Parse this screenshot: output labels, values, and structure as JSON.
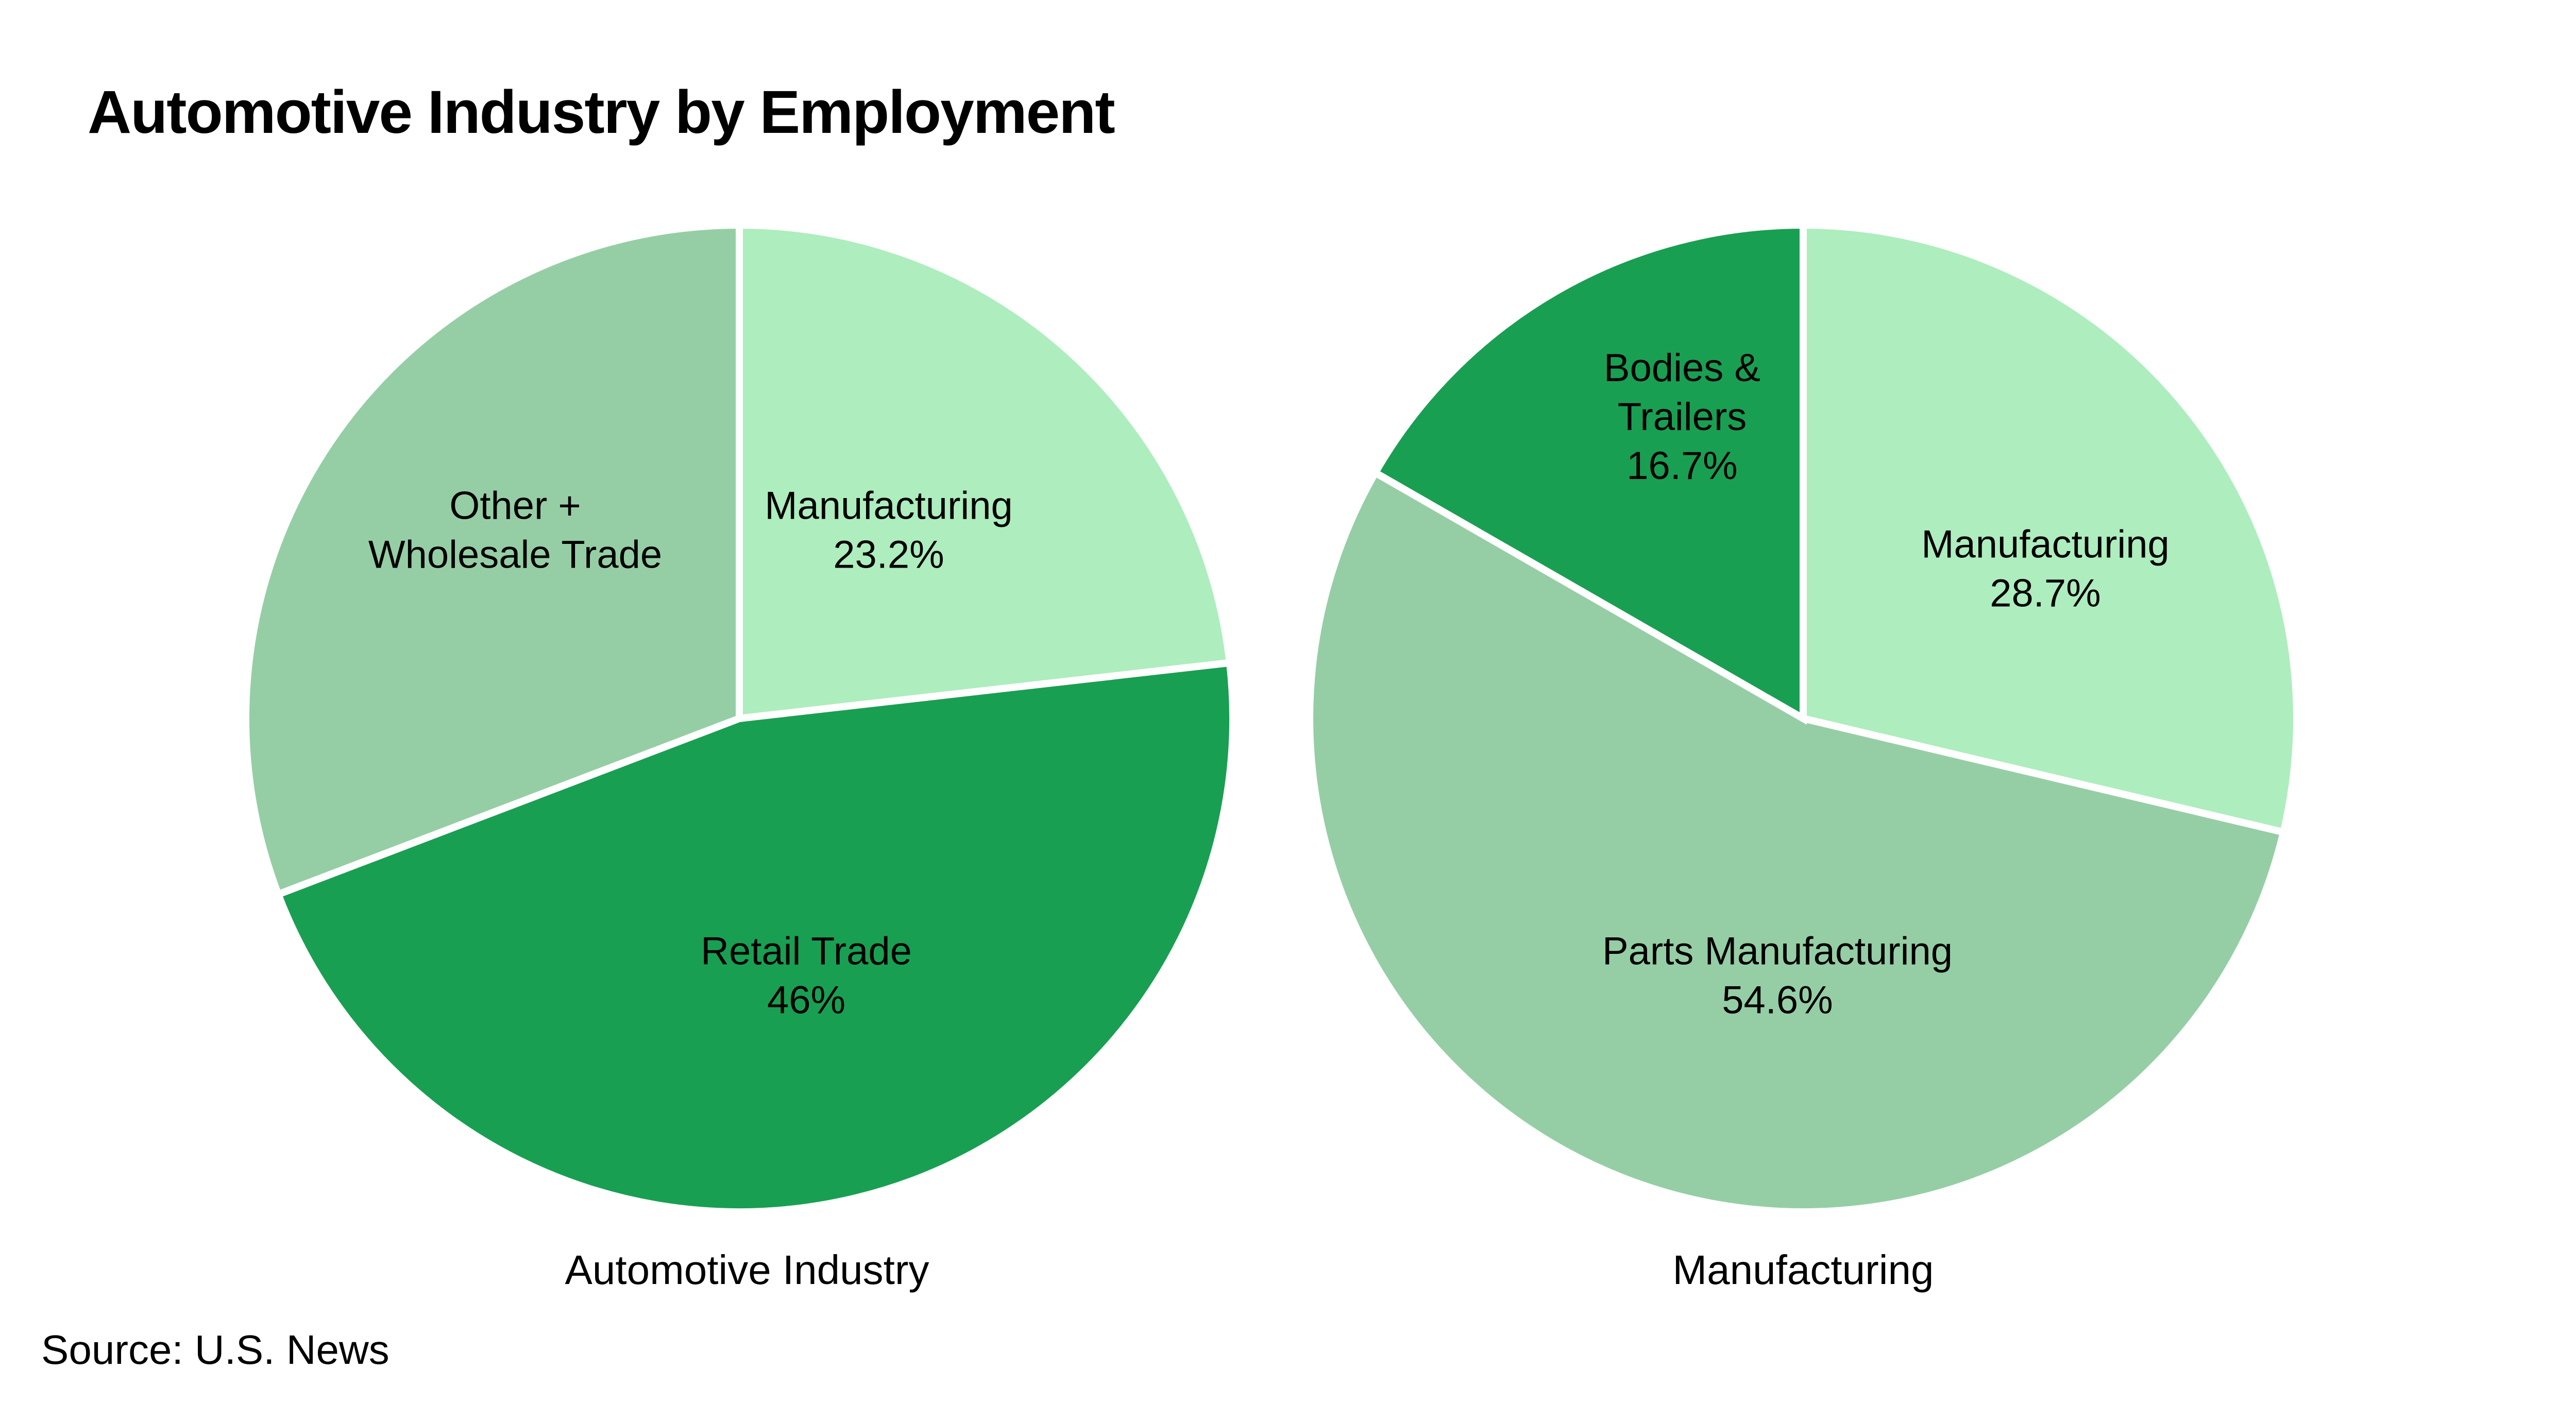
{
  "title": "Automotive Industry by Employment",
  "source": "Source: U.S. News",
  "colors": {
    "light_green": "#ADEDBE",
    "sage_green": "#95CEA5",
    "dark_green": "#199F52"
  },
  "chart_data": [
    {
      "type": "pie",
      "caption": "Automotive Industry",
      "slices": [
        {
          "label_lines": [
            "Manufacturing"
          ],
          "value_label": "23.2%",
          "value": 23.2,
          "color": "#ADEDBE"
        },
        {
          "label_lines": [
            "Retail Trade"
          ],
          "value_label": "46%",
          "value": 46,
          "color": "#199F52"
        },
        {
          "label_lines": [
            "Other +",
            "Wholesale Trade"
          ],
          "value_label": "",
          "value": 30.8,
          "color": "#95CEA5"
        }
      ]
    },
    {
      "type": "pie",
      "caption": "Manufacturing",
      "slices": [
        {
          "label_lines": [
            "Manufacturing"
          ],
          "value_label": "28.7%",
          "value": 28.7,
          "color": "#ADEDBE"
        },
        {
          "label_lines": [
            "Parts Manufacturing"
          ],
          "value_label": "54.6%",
          "value": 54.6,
          "color": "#95CEA5"
        },
        {
          "label_lines": [
            "Bodies &",
            "Trailers"
          ],
          "value_label": "16.7%",
          "value": 16.7,
          "color": "#199F52"
        }
      ]
    }
  ]
}
